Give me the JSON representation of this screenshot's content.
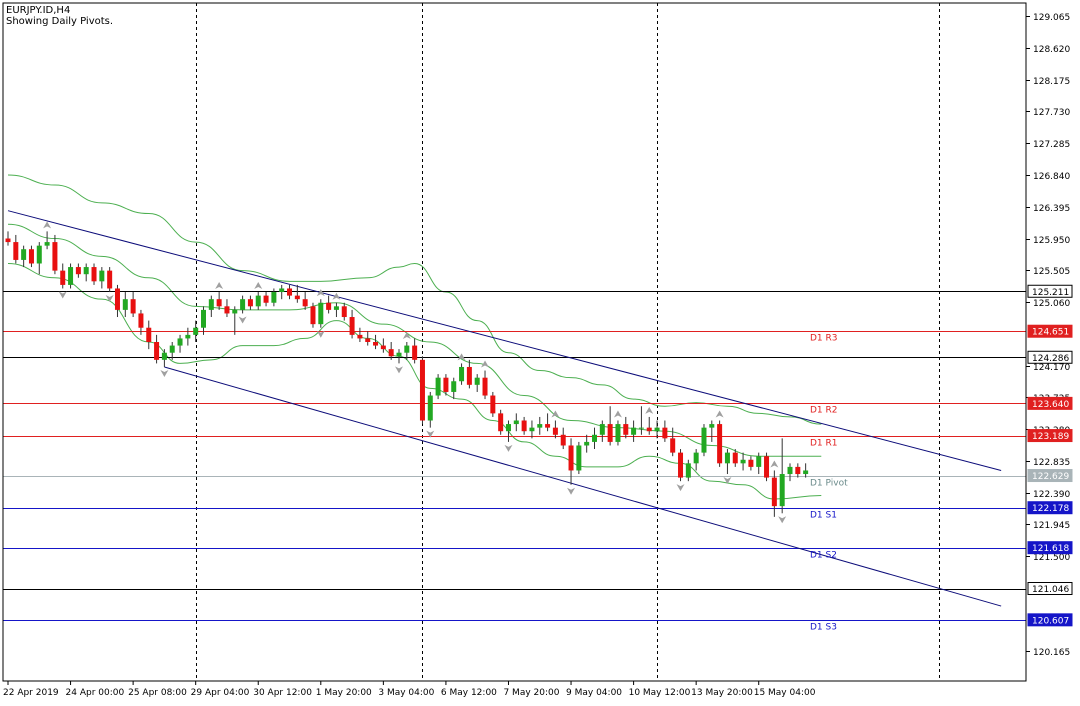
{
  "header": {
    "symbol": "EURJPY.ID,H4",
    "subtitle": "Showing Daily Pivots."
  },
  "chart_data": {
    "type": "candlestick",
    "title": "EURJPY.ID,H4",
    "subtitle": "Showing Daily Pivots.",
    "ylim": [
      119.75,
      129.25
    ],
    "y_ticks": [
      129.065,
      128.62,
      128.175,
      127.73,
      127.285,
      126.84,
      126.395,
      125.95,
      125.505,
      125.06,
      124.17,
      123.725,
      123.28,
      122.835,
      122.39,
      121.945,
      121.5,
      120.165
    ],
    "x_labels": [
      "22 Apr 2019",
      "24 Apr 00:00",
      "25 Apr 08:00",
      "29 Apr 04:00",
      "30 Apr 12:00",
      "1 May 20:00",
      "3 May 04:00",
      "6 May 12:00",
      "7 May 20:00",
      "9 May 04:00",
      "10 May 12:00",
      "13 May 20:00",
      "15 May 04:00"
    ],
    "x_label_bars": [
      0,
      8,
      16,
      24,
      32,
      40,
      48,
      56,
      64,
      72,
      80,
      88,
      96
    ],
    "day_separator_bars": [
      24,
      53,
      83,
      119
    ],
    "grid": false,
    "colors": {
      "bull": "#22a822",
      "bear": "#e81010",
      "bands": "#4caf50",
      "channel": "#0d0d7a",
      "resistance": "#e02020",
      "support": "#1515c8",
      "black_level": "#000000"
    },
    "pivot_levels": [
      {
        "label": "D1 R3",
        "value": 124.651,
        "tag": "124.651",
        "kind": "resistance"
      },
      {
        "label": "D1 R2",
        "value": 123.64,
        "tag": "123.640",
        "kind": "resistance"
      },
      {
        "label": "D1 R1",
        "value": 123.189,
        "tag": "123.189",
        "kind": "resistance"
      },
      {
        "label": "D1 Pivot",
        "value": 122.629,
        "tag": "122.629",
        "kind": "pivot"
      },
      {
        "label": "D1 S1",
        "value": 122.178,
        "tag": "122.178",
        "kind": "support"
      },
      {
        "label": "D1 S2",
        "value": 121.618,
        "tag": "121.618",
        "kind": "support"
      },
      {
        "label": "D1 S3",
        "value": 120.607,
        "tag": "120.607",
        "kind": "support"
      }
    ],
    "extra_levels": [
      {
        "value": 125.211,
        "tag": "125.211"
      },
      {
        "value": 124.286,
        "tag": "124.286"
      },
      {
        "value": 121.046,
        "tag": "121.046"
      }
    ],
    "channel_lines": [
      {
        "x0": 0,
        "y0": 126.34,
        "x1": 127,
        "y1": 122.7
      },
      {
        "x0": 20,
        "y0": 124.15,
        "x1": 127,
        "y1": 120.8
      }
    ],
    "candles": [
      {
        "o": 125.95,
        "h": 126.05,
        "l": 125.85,
        "c": 125.9
      },
      {
        "o": 125.9,
        "h": 126.0,
        "l": 125.6,
        "c": 125.65
      },
      {
        "o": 125.65,
        "h": 125.85,
        "l": 125.55,
        "c": 125.8
      },
      {
        "o": 125.8,
        "h": 125.85,
        "l": 125.55,
        "c": 125.6
      },
      {
        "o": 125.6,
        "h": 125.9,
        "l": 125.45,
        "c": 125.85
      },
      {
        "o": 125.85,
        "h": 126.05,
        "l": 125.8,
        "c": 125.9
      },
      {
        "o": 125.9,
        "h": 126.0,
        "l": 125.45,
        "c": 125.5
      },
      {
        "o": 125.5,
        "h": 125.6,
        "l": 125.25,
        "c": 125.3
      },
      {
        "o": 125.3,
        "h": 125.6,
        "l": 125.25,
        "c": 125.55
      },
      {
        "o": 125.55,
        "h": 125.6,
        "l": 125.4,
        "c": 125.45
      },
      {
        "o": 125.45,
        "h": 125.6,
        "l": 125.35,
        "c": 125.55
      },
      {
        "o": 125.55,
        "h": 125.6,
        "l": 125.3,
        "c": 125.35
      },
      {
        "o": 125.35,
        "h": 125.55,
        "l": 125.25,
        "c": 125.5
      },
      {
        "o": 125.5,
        "h": 125.55,
        "l": 125.2,
        "c": 125.25
      },
      {
        "o": 125.25,
        "h": 125.3,
        "l": 124.85,
        "c": 124.95
      },
      {
        "o": 124.95,
        "h": 125.2,
        "l": 124.85,
        "c": 125.1
      },
      {
        "o": 125.1,
        "h": 125.2,
        "l": 124.85,
        "c": 124.9
      },
      {
        "o": 124.9,
        "h": 124.95,
        "l": 124.6,
        "c": 124.7
      },
      {
        "o": 124.7,
        "h": 124.8,
        "l": 124.4,
        "c": 124.5
      },
      {
        "o": 124.5,
        "h": 124.6,
        "l": 124.2,
        "c": 124.25
      },
      {
        "o": 124.25,
        "h": 124.4,
        "l": 124.15,
        "c": 124.35
      },
      {
        "o": 124.35,
        "h": 124.5,
        "l": 124.25,
        "c": 124.45
      },
      {
        "o": 124.45,
        "h": 124.6,
        "l": 124.35,
        "c": 124.55
      },
      {
        "o": 124.55,
        "h": 124.7,
        "l": 124.45,
        "c": 124.6
      },
      {
        "o": 124.6,
        "h": 124.8,
        "l": 124.5,
        "c": 124.7
      },
      {
        "o": 124.7,
        "h": 125.0,
        "l": 124.6,
        "c": 124.95
      },
      {
        "o": 124.95,
        "h": 125.15,
        "l": 124.85,
        "c": 125.1
      },
      {
        "o": 125.1,
        "h": 125.2,
        "l": 124.95,
        "c": 125.0
      },
      {
        "o": 125.0,
        "h": 125.1,
        "l": 124.85,
        "c": 124.9
      },
      {
        "o": 124.9,
        "h": 125.0,
        "l": 124.6,
        "c": 124.95
      },
      {
        "o": 124.95,
        "h": 125.15,
        "l": 124.9,
        "c": 125.1
      },
      {
        "o": 125.1,
        "h": 125.15,
        "l": 124.95,
        "c": 125.0
      },
      {
        "o": 125.0,
        "h": 125.2,
        "l": 124.95,
        "c": 125.15
      },
      {
        "o": 125.15,
        "h": 125.2,
        "l": 125.0,
        "c": 125.05
      },
      {
        "o": 125.05,
        "h": 125.25,
        "l": 125.0,
        "c": 125.2
      },
      {
        "o": 125.2,
        "h": 125.3,
        "l": 125.1,
        "c": 125.25
      },
      {
        "o": 125.25,
        "h": 125.3,
        "l": 125.1,
        "c": 125.15
      },
      {
        "o": 125.15,
        "h": 125.3,
        "l": 125.05,
        "c": 125.1
      },
      {
        "o": 125.1,
        "h": 125.2,
        "l": 124.95,
        "c": 125.0
      },
      {
        "o": 125.0,
        "h": 125.05,
        "l": 124.7,
        "c": 124.75
      },
      {
        "o": 124.75,
        "h": 125.1,
        "l": 124.7,
        "c": 125.05
      },
      {
        "o": 125.05,
        "h": 125.15,
        "l": 124.9,
        "c": 124.95
      },
      {
        "o": 124.95,
        "h": 125.05,
        "l": 124.85,
        "c": 125.0
      },
      {
        "o": 125.0,
        "h": 125.05,
        "l": 124.8,
        "c": 124.85
      },
      {
        "o": 124.85,
        "h": 124.95,
        "l": 124.55,
        "c": 124.6
      },
      {
        "o": 124.6,
        "h": 124.7,
        "l": 124.5,
        "c": 124.55
      },
      {
        "o": 124.55,
        "h": 124.65,
        "l": 124.45,
        "c": 124.5
      },
      {
        "o": 124.5,
        "h": 124.6,
        "l": 124.4,
        "c": 124.45
      },
      {
        "o": 124.45,
        "h": 124.55,
        "l": 124.35,
        "c": 124.4
      },
      {
        "o": 124.4,
        "h": 124.5,
        "l": 124.25,
        "c": 124.3
      },
      {
        "o": 124.3,
        "h": 124.4,
        "l": 124.2,
        "c": 124.35
      },
      {
        "o": 124.35,
        "h": 124.5,
        "l": 124.25,
        "c": 124.45
      },
      {
        "o": 124.45,
        "h": 124.55,
        "l": 124.2,
        "c": 124.25
      },
      {
        "o": 124.25,
        "h": 124.3,
        "l": 123.35,
        "c": 123.4
      },
      {
        "o": 123.4,
        "h": 123.8,
        "l": 123.3,
        "c": 123.75
      },
      {
        "o": 123.75,
        "h": 124.05,
        "l": 123.7,
        "c": 124.0
      },
      {
        "o": 124.0,
        "h": 124.05,
        "l": 123.75,
        "c": 123.8
      },
      {
        "o": 123.8,
        "h": 124.0,
        "l": 123.7,
        "c": 123.95
      },
      {
        "o": 123.95,
        "h": 124.2,
        "l": 123.9,
        "c": 124.15
      },
      {
        "o": 124.15,
        "h": 124.25,
        "l": 123.85,
        "c": 123.9
      },
      {
        "o": 123.9,
        "h": 124.05,
        "l": 123.8,
        "c": 124.0
      },
      {
        "o": 124.0,
        "h": 124.1,
        "l": 123.7,
        "c": 123.75
      },
      {
        "o": 123.75,
        "h": 123.8,
        "l": 123.45,
        "c": 123.5
      },
      {
        "o": 123.5,
        "h": 123.55,
        "l": 123.2,
        "c": 123.25
      },
      {
        "o": 123.25,
        "h": 123.4,
        "l": 123.1,
        "c": 123.35
      },
      {
        "o": 123.35,
        "h": 123.5,
        "l": 123.25,
        "c": 123.4
      },
      {
        "o": 123.4,
        "h": 123.45,
        "l": 123.2,
        "c": 123.25
      },
      {
        "o": 123.25,
        "h": 123.4,
        "l": 123.15,
        "c": 123.3
      },
      {
        "o": 123.3,
        "h": 123.45,
        "l": 123.2,
        "c": 123.35
      },
      {
        "o": 123.35,
        "h": 123.5,
        "l": 123.25,
        "c": 123.3
      },
      {
        "o": 123.3,
        "h": 123.4,
        "l": 123.15,
        "c": 123.2
      },
      {
        "o": 123.2,
        "h": 123.3,
        "l": 123.0,
        "c": 123.05
      },
      {
        "o": 123.05,
        "h": 123.15,
        "l": 122.5,
        "c": 122.7
      },
      {
        "o": 122.7,
        "h": 123.1,
        "l": 122.65,
        "c": 123.05
      },
      {
        "o": 123.05,
        "h": 123.2,
        "l": 122.95,
        "c": 123.1
      },
      {
        "o": 123.1,
        "h": 123.3,
        "l": 123.0,
        "c": 123.2
      },
      {
        "o": 123.2,
        "h": 123.4,
        "l": 123.1,
        "c": 123.35
      },
      {
        "o": 123.35,
        "h": 123.6,
        "l": 123.05,
        "c": 123.1
      },
      {
        "o": 123.1,
        "h": 123.4,
        "l": 123.05,
        "c": 123.35
      },
      {
        "o": 123.35,
        "h": 123.45,
        "l": 123.15,
        "c": 123.2
      },
      {
        "o": 123.2,
        "h": 123.4,
        "l": 123.1,
        "c": 123.3
      },
      {
        "o": 123.3,
        "h": 123.6,
        "l": 123.2,
        "c": 123.3
      },
      {
        "o": 123.3,
        "h": 123.45,
        "l": 123.2,
        "c": 123.25
      },
      {
        "o": 123.25,
        "h": 123.4,
        "l": 123.15,
        "c": 123.3
      },
      {
        "o": 123.3,
        "h": 123.4,
        "l": 123.1,
        "c": 123.15
      },
      {
        "o": 123.15,
        "h": 123.3,
        "l": 122.9,
        "c": 122.95
      },
      {
        "o": 122.95,
        "h": 123.0,
        "l": 122.55,
        "c": 122.6
      },
      {
        "o": 122.6,
        "h": 122.85,
        "l": 122.55,
        "c": 122.8
      },
      {
        "o": 122.8,
        "h": 123.0,
        "l": 122.7,
        "c": 122.95
      },
      {
        "o": 122.95,
        "h": 123.35,
        "l": 122.9,
        "c": 123.3
      },
      {
        "o": 123.3,
        "h": 123.4,
        "l": 123.1,
        "c": 123.35
      },
      {
        "o": 123.35,
        "h": 123.4,
        "l": 122.75,
        "c": 122.8
      },
      {
        "o": 122.8,
        "h": 123.0,
        "l": 122.65,
        "c": 122.95
      },
      {
        "o": 122.95,
        "h": 123.0,
        "l": 122.75,
        "c": 122.8
      },
      {
        "o": 122.8,
        "h": 122.95,
        "l": 122.7,
        "c": 122.85
      },
      {
        "o": 122.85,
        "h": 122.9,
        "l": 122.7,
        "c": 122.75
      },
      {
        "o": 122.75,
        "h": 122.95,
        "l": 122.65,
        "c": 122.9
      },
      {
        "o": 122.9,
        "h": 122.95,
        "l": 122.55,
        "c": 122.6
      },
      {
        "o": 122.6,
        "h": 122.7,
        "l": 122.05,
        "c": 122.2
      },
      {
        "o": 122.2,
        "h": 123.15,
        "l": 122.1,
        "c": 122.65
      },
      {
        "o": 122.65,
        "h": 122.8,
        "l": 122.55,
        "c": 122.75
      },
      {
        "o": 122.75,
        "h": 122.8,
        "l": 122.6,
        "c": 122.65
      },
      {
        "o": 122.65,
        "h": 122.8,
        "l": 122.6,
        "c": 122.7
      }
    ],
    "bands": {
      "upper": [
        [
          0,
          126.84
        ],
        [
          6,
          126.7
        ],
        [
          12,
          126.45
        ],
        [
          18,
          126.3
        ],
        [
          24,
          125.9
        ],
        [
          30,
          125.5
        ],
        [
          36,
          125.35
        ],
        [
          40,
          125.35
        ],
        [
          46,
          125.4
        ],
        [
          50,
          125.55
        ],
        [
          52,
          125.6
        ],
        [
          56,
          125.2
        ],
        [
          60,
          124.8
        ],
        [
          64,
          124.35
        ],
        [
          68,
          124.1
        ],
        [
          72,
          124.0
        ],
        [
          76,
          123.9
        ],
        [
          80,
          123.7
        ],
        [
          84,
          123.6
        ],
        [
          88,
          123.65
        ],
        [
          92,
          123.6
        ],
        [
          96,
          123.5
        ],
        [
          100,
          123.45
        ],
        [
          104,
          123.35
        ]
      ],
      "lower": [
        [
          0,
          125.6
        ],
        [
          6,
          125.4
        ],
        [
          12,
          125.1
        ],
        [
          18,
          124.5
        ],
        [
          22,
          124.2
        ],
        [
          26,
          124.25
        ],
        [
          30,
          124.45
        ],
        [
          34,
          124.45
        ],
        [
          38,
          124.55
        ],
        [
          42,
          124.8
        ],
        [
          46,
          124.55
        ],
        [
          50,
          124.3
        ],
        [
          54,
          123.85
        ],
        [
          58,
          123.7
        ],
        [
          62,
          123.4
        ],
        [
          66,
          123.1
        ],
        [
          70,
          122.9
        ],
        [
          74,
          122.75
        ],
        [
          78,
          122.75
        ],
        [
          82,
          122.9
        ],
        [
          86,
          122.8
        ],
        [
          90,
          122.55
        ],
        [
          94,
          122.5
        ],
        [
          98,
          122.3
        ],
        [
          104,
          122.35
        ]
      ],
      "middle": [
        [
          0,
          126.15
        ],
        [
          6,
          125.95
        ],
        [
          12,
          125.7
        ],
        [
          18,
          125.4
        ],
        [
          24,
          125.0
        ],
        [
          30,
          124.95
        ],
        [
          36,
          124.95
        ],
        [
          42,
          125.05
        ],
        [
          48,
          124.75
        ],
        [
          54,
          124.5
        ],
        [
          60,
          124.2
        ],
        [
          66,
          123.75
        ],
        [
          72,
          123.4
        ],
        [
          78,
          123.3
        ],
        [
          84,
          123.25
        ],
        [
          90,
          123.05
        ],
        [
          96,
          122.9
        ],
        [
          104,
          122.9
        ]
      ]
    },
    "fractals_up": [
      5,
      27,
      32,
      40,
      42,
      51,
      58,
      61,
      70,
      78,
      82,
      91,
      98
    ],
    "fractals_down": [
      7,
      13,
      20,
      30,
      40,
      50,
      54,
      64,
      72,
      86,
      92,
      99
    ]
  }
}
